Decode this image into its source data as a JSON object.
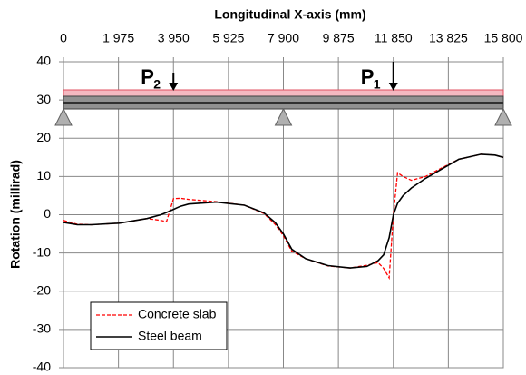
{
  "chart_data": {
    "type": "line",
    "title": "Longitudinal X-axis (mm)",
    "y_label": "Rotation (millirad)",
    "x": [
      0,
      500,
      1000,
      2000,
      3000,
      3500,
      3700,
      3950,
      4200,
      4500,
      5500,
      6500,
      7200,
      7600,
      7900,
      8200,
      8700,
      9500,
      10300,
      10900,
      11300,
      11500,
      11700,
      11850,
      12000,
      12200,
      12500,
      13000,
      13600,
      14200,
      15000,
      15500,
      15800
    ],
    "series": [
      {
        "name": "Concrete slab",
        "color": "#ff0000",
        "dashed": true,
        "values": [
          -1.5,
          -2.5,
          -2.6,
          -2.2,
          -1.0,
          -1.5,
          -1.8,
          4.2,
          4.3,
          4.0,
          3.4,
          2.5,
          0.3,
          -2.5,
          -5.5,
          -9.5,
          -11.5,
          -13.4,
          -13.9,
          -13.2,
          -12.5,
          -14,
          -16.5,
          0,
          11,
          10,
          9,
          10,
          12.3,
          14.5,
          15.8,
          15.6,
          15
        ]
      },
      {
        "name": "Steel beam",
        "color": "#000000",
        "dashed": false,
        "values": [
          -2,
          -2.6,
          -2.6,
          -2.2,
          -1.0,
          0,
          0.6,
          1.4,
          2.2,
          2.8,
          3.3,
          2.5,
          0.5,
          -2,
          -5,
          -9,
          -11.5,
          -13.3,
          -13.9,
          -13.5,
          -12,
          -10.5,
          -6,
          0,
          3,
          5,
          7,
          9.5,
          12,
          14.5,
          15.8,
          15.6,
          15
        ]
      }
    ],
    "xlim": [
      0,
      15800
    ],
    "xticks": [
      0,
      {
        "value": 1975,
        "label": "1 975"
      },
      {
        "value": 3950,
        "label": "3 950"
      },
      {
        "value": 5925,
        "label": "5 925"
      },
      {
        "value": 7900,
        "label": "7 900"
      },
      {
        "value": 9875,
        "label": "9 875"
      },
      {
        "value": 11850,
        "label": "11 850"
      },
      {
        "value": 13825,
        "label": "13 825"
      },
      {
        "value": 15800,
        "label": "15 800"
      }
    ],
    "ylim": [
      -40,
      40
    ],
    "yticks": [
      -40,
      -30,
      -20,
      -10,
      0,
      10,
      20,
      30,
      40
    ],
    "grid": true,
    "legend": "lower left",
    "supports": [
      0,
      7900,
      15800
    ],
    "loads": [
      {
        "label": "P",
        "subscript": "2",
        "x": 3950
      },
      {
        "label": "P",
        "subscript": "1",
        "x": 11850
      }
    ]
  }
}
